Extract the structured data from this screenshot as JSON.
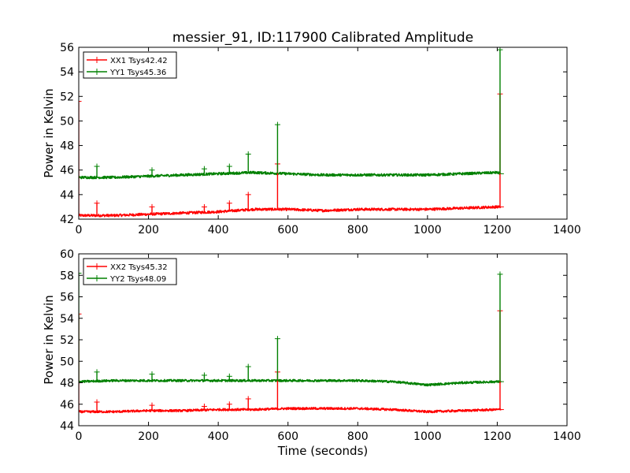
{
  "figure": {
    "title": "messier_91, ID:117900 Calibrated Amplitude"
  },
  "chart_data": [
    {
      "type": "line",
      "title": "messier_91, ID:117900 Calibrated Amplitude",
      "xlabel": "",
      "ylabel": "Power in Kelvin",
      "xlim": [
        0,
        1400
      ],
      "ylim": [
        42,
        56
      ],
      "xticks": [
        0,
        200,
        400,
        600,
        800,
        1000,
        1200,
        1400
      ],
      "yticks": [
        42,
        44,
        46,
        48,
        50,
        52,
        54,
        56
      ],
      "grid": false,
      "legend_position": "top-left",
      "colors": {
        "XX1": "#ff0000",
        "YY1": "#008000"
      },
      "series": [
        {
          "name": "XX1 Tsys42.42",
          "color": "#ff0000",
          "x": [
            0,
            100,
            200,
            300,
            400,
            500,
            600,
            700,
            800,
            900,
            1000,
            1100,
            1200,
            1210
          ],
          "y": [
            42.3,
            42.3,
            42.4,
            42.5,
            42.6,
            42.8,
            42.8,
            42.7,
            42.8,
            42.8,
            42.8,
            42.9,
            43.0,
            43.0
          ]
        },
        {
          "name": "YY1 Tsys45.36",
          "color": "#008000",
          "x": [
            0,
            100,
            200,
            300,
            400,
            500,
            600,
            700,
            800,
            900,
            1000,
            1100,
            1200,
            1210
          ],
          "y": [
            45.4,
            45.4,
            45.5,
            45.6,
            45.7,
            45.8,
            45.7,
            45.6,
            45.6,
            45.6,
            45.6,
            45.7,
            45.8,
            45.7
          ]
        }
      ],
      "spikes": [
        {
          "series": 0,
          "x": 0,
          "y": 51.6
        },
        {
          "series": 0,
          "x": 52,
          "y": 43.3
        },
        {
          "series": 0,
          "x": 210,
          "y": 43.0
        },
        {
          "series": 0,
          "x": 360,
          "y": 43.0
        },
        {
          "series": 0,
          "x": 432,
          "y": 43.3
        },
        {
          "series": 0,
          "x": 486,
          "y": 44.0
        },
        {
          "series": 0,
          "x": 570,
          "y": 46.5
        },
        {
          "series": 0,
          "x": 1208,
          "y": 52.2
        },
        {
          "series": 1,
          "x": 52,
          "y": 46.3
        },
        {
          "series": 1,
          "x": 210,
          "y": 46.0
        },
        {
          "series": 1,
          "x": 360,
          "y": 46.1
        },
        {
          "series": 1,
          "x": 432,
          "y": 46.3
        },
        {
          "series": 1,
          "x": 486,
          "y": 47.3
        },
        {
          "series": 1,
          "x": 570,
          "y": 49.7
        },
        {
          "series": 1,
          "x": 1208,
          "y": 55.8
        }
      ]
    },
    {
      "type": "line",
      "title": "",
      "xlabel": "Time (seconds)",
      "ylabel": "Power in Kelvin",
      "xlim": [
        0,
        1400
      ],
      "ylim": [
        44,
        60
      ],
      "xticks": [
        0,
        200,
        400,
        600,
        800,
        1000,
        1200,
        1400
      ],
      "yticks": [
        44,
        46,
        48,
        50,
        52,
        54,
        56,
        58,
        60
      ],
      "grid": false,
      "legend_position": "top-left",
      "colors": {
        "XX2": "#ff0000",
        "YY2": "#008000"
      },
      "series": [
        {
          "name": "XX2 Tsys45.32",
          "color": "#ff0000",
          "x": [
            0,
            100,
            200,
            300,
            400,
            500,
            600,
            700,
            800,
            900,
            1000,
            1100,
            1200,
            1210
          ],
          "y": [
            45.3,
            45.3,
            45.4,
            45.4,
            45.5,
            45.5,
            45.6,
            45.6,
            45.6,
            45.5,
            45.3,
            45.4,
            45.5,
            45.5
          ]
        },
        {
          "name": "YY2 Tsys48.09",
          "color": "#008000",
          "x": [
            0,
            100,
            200,
            300,
            400,
            500,
            600,
            700,
            800,
            900,
            1000,
            1100,
            1200,
            1210
          ],
          "y": [
            48.1,
            48.2,
            48.2,
            48.2,
            48.2,
            48.2,
            48.2,
            48.2,
            48.2,
            48.1,
            47.8,
            48.0,
            48.1,
            48.1
          ]
        }
      ],
      "spikes": [
        {
          "series": 0,
          "x": 0,
          "y": 54.4
        },
        {
          "series": 0,
          "x": 52,
          "y": 46.2
        },
        {
          "series": 0,
          "x": 210,
          "y": 45.9
        },
        {
          "series": 0,
          "x": 360,
          "y": 45.8
        },
        {
          "series": 0,
          "x": 432,
          "y": 46.0
        },
        {
          "series": 0,
          "x": 486,
          "y": 46.5
        },
        {
          "series": 0,
          "x": 570,
          "y": 49.0
        },
        {
          "series": 0,
          "x": 1208,
          "y": 54.7
        },
        {
          "series": 1,
          "x": 0,
          "y": 58.2
        },
        {
          "series": 1,
          "x": 52,
          "y": 49.0
        },
        {
          "series": 1,
          "x": 210,
          "y": 48.8
        },
        {
          "series": 1,
          "x": 360,
          "y": 48.7
        },
        {
          "series": 1,
          "x": 432,
          "y": 48.6
        },
        {
          "series": 1,
          "x": 486,
          "y": 49.5
        },
        {
          "series": 1,
          "x": 570,
          "y": 52.1
        },
        {
          "series": 1,
          "x": 1208,
          "y": 58.1
        }
      ]
    }
  ]
}
